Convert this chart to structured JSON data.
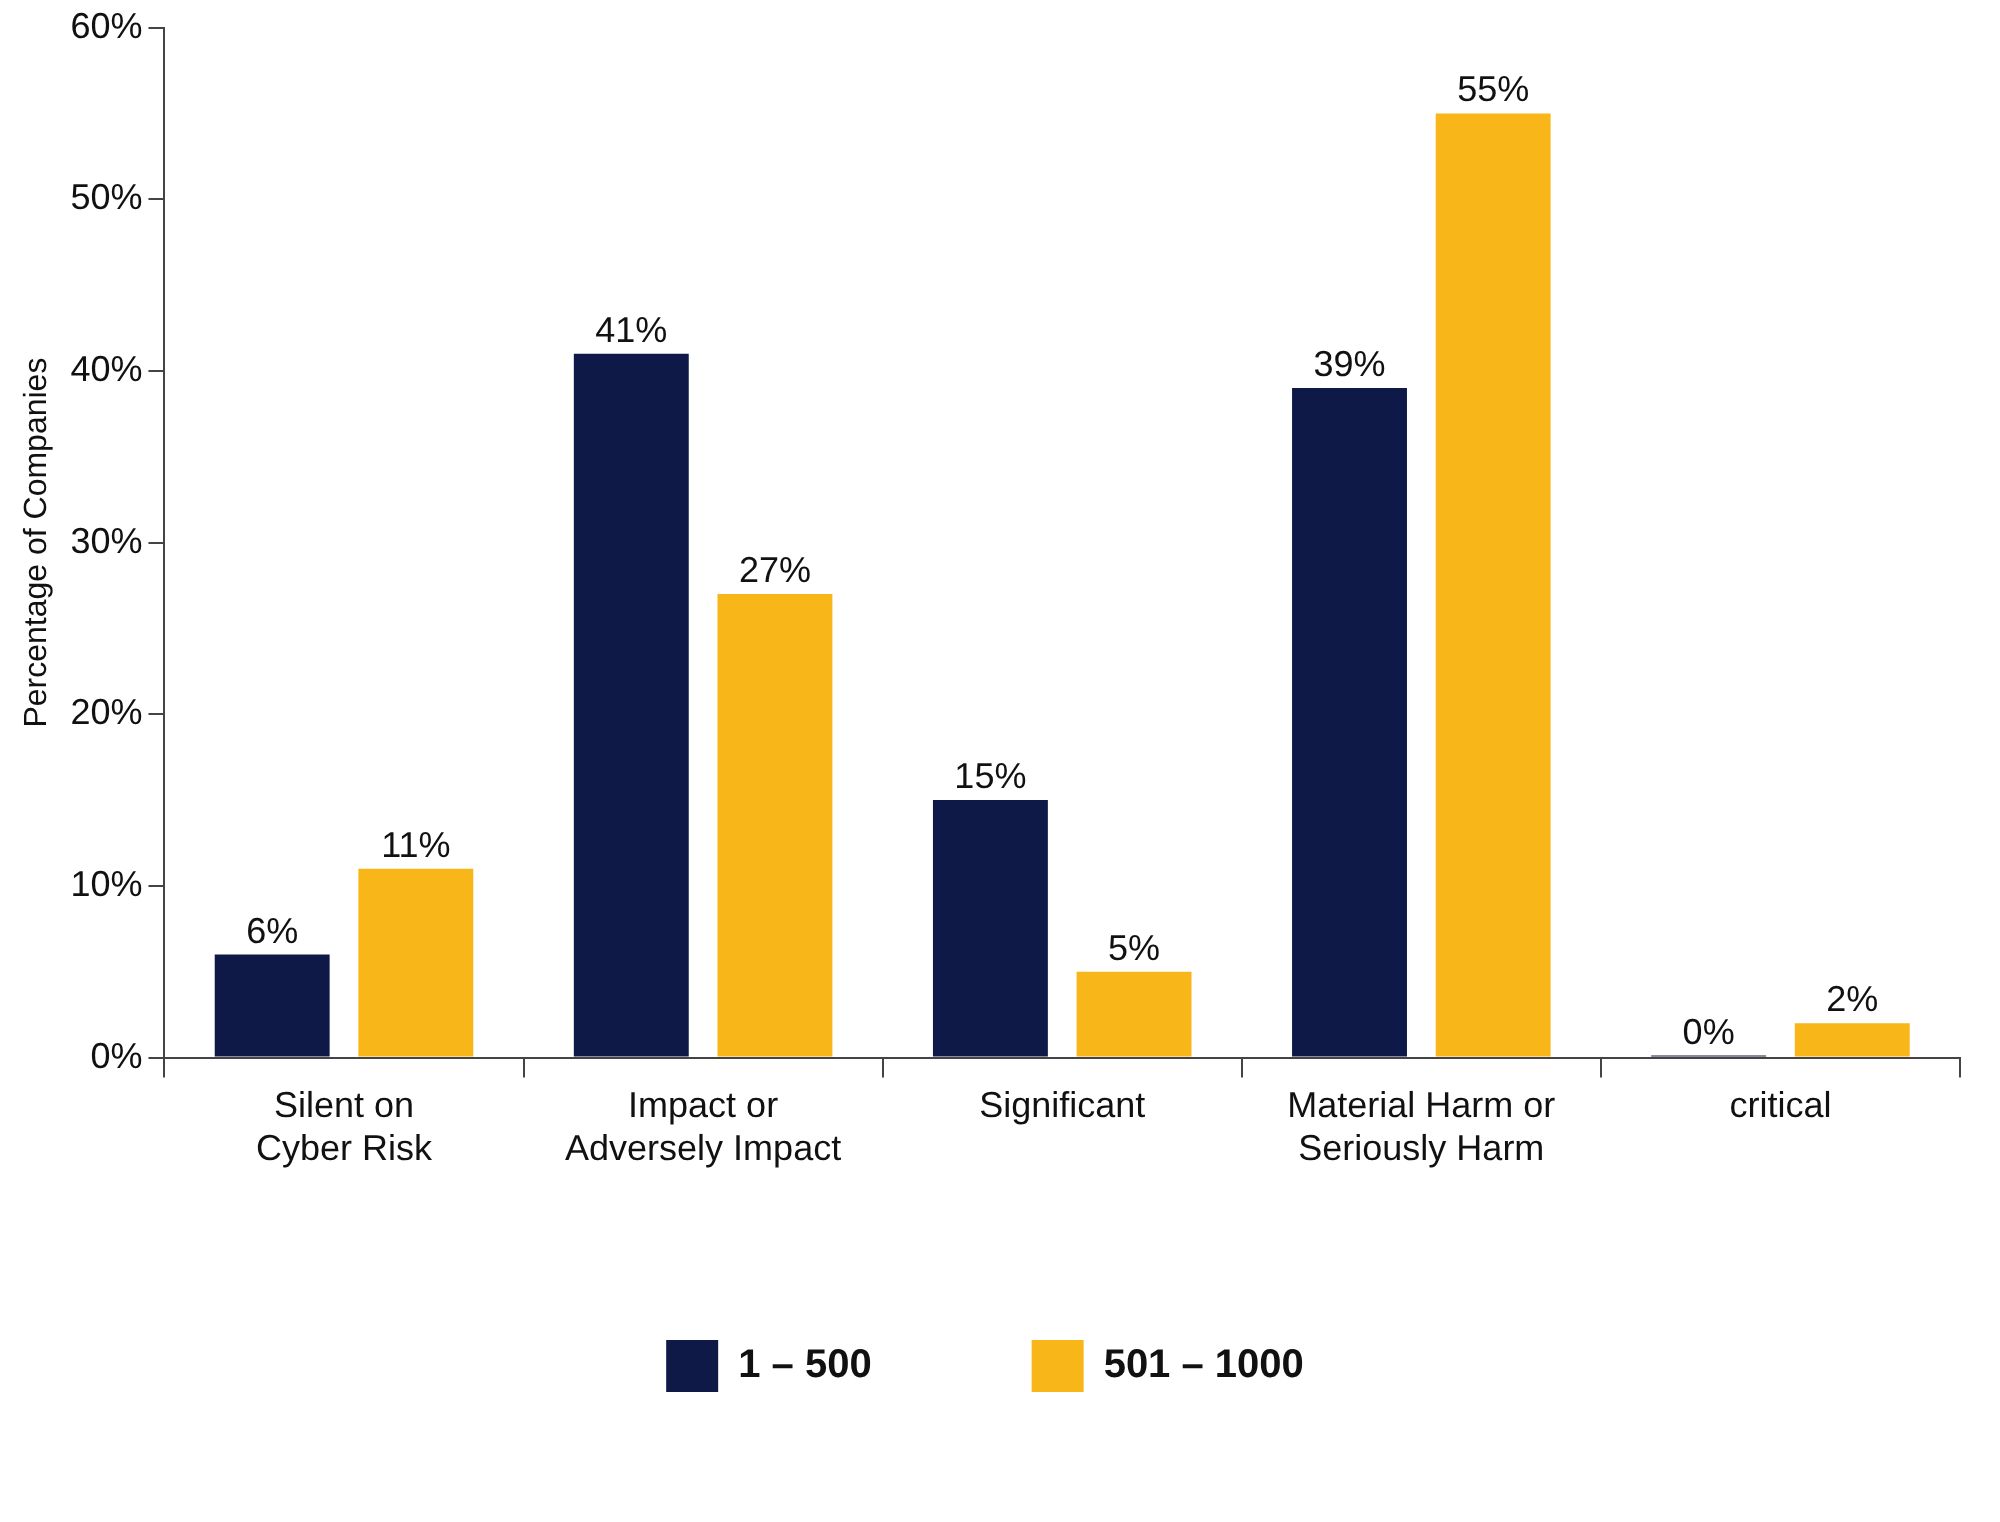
{
  "chart_data": {
    "type": "bar",
    "ylabel": "Percentage of Companies",
    "categories": [
      "Silent on Cyber Risk",
      "Impact or Adversely Impact",
      "Significant",
      "Material Harm or Seriously Harm",
      "critical"
    ],
    "series": [
      {
        "name": "1 – 500",
        "color": "#0e1947",
        "values": [
          6,
          41,
          15,
          39,
          0
        ],
        "value_labels": [
          "6%",
          "41%",
          "15%",
          "39%",
          "0%"
        ]
      },
      {
        "name": "501 – 1000",
        "color": "#f8b619",
        "values": [
          11,
          27,
          5,
          55,
          2
        ],
        "value_labels": [
          "11%",
          "27%",
          "5%",
          "55%",
          "2%"
        ]
      }
    ],
    "ylim": [
      0,
      60
    ],
    "yticks": [
      {
        "value": 0,
        "label": "0%"
      },
      {
        "value": 10,
        "label": "10%"
      },
      {
        "value": 20,
        "label": "20%"
      },
      {
        "value": 30,
        "label": "30%"
      },
      {
        "value": 40,
        "label": "40%"
      },
      {
        "value": 50,
        "label": "50%"
      },
      {
        "value": 60,
        "label": "60%"
      }
    ],
    "grid": false,
    "legend": "bottom"
  }
}
